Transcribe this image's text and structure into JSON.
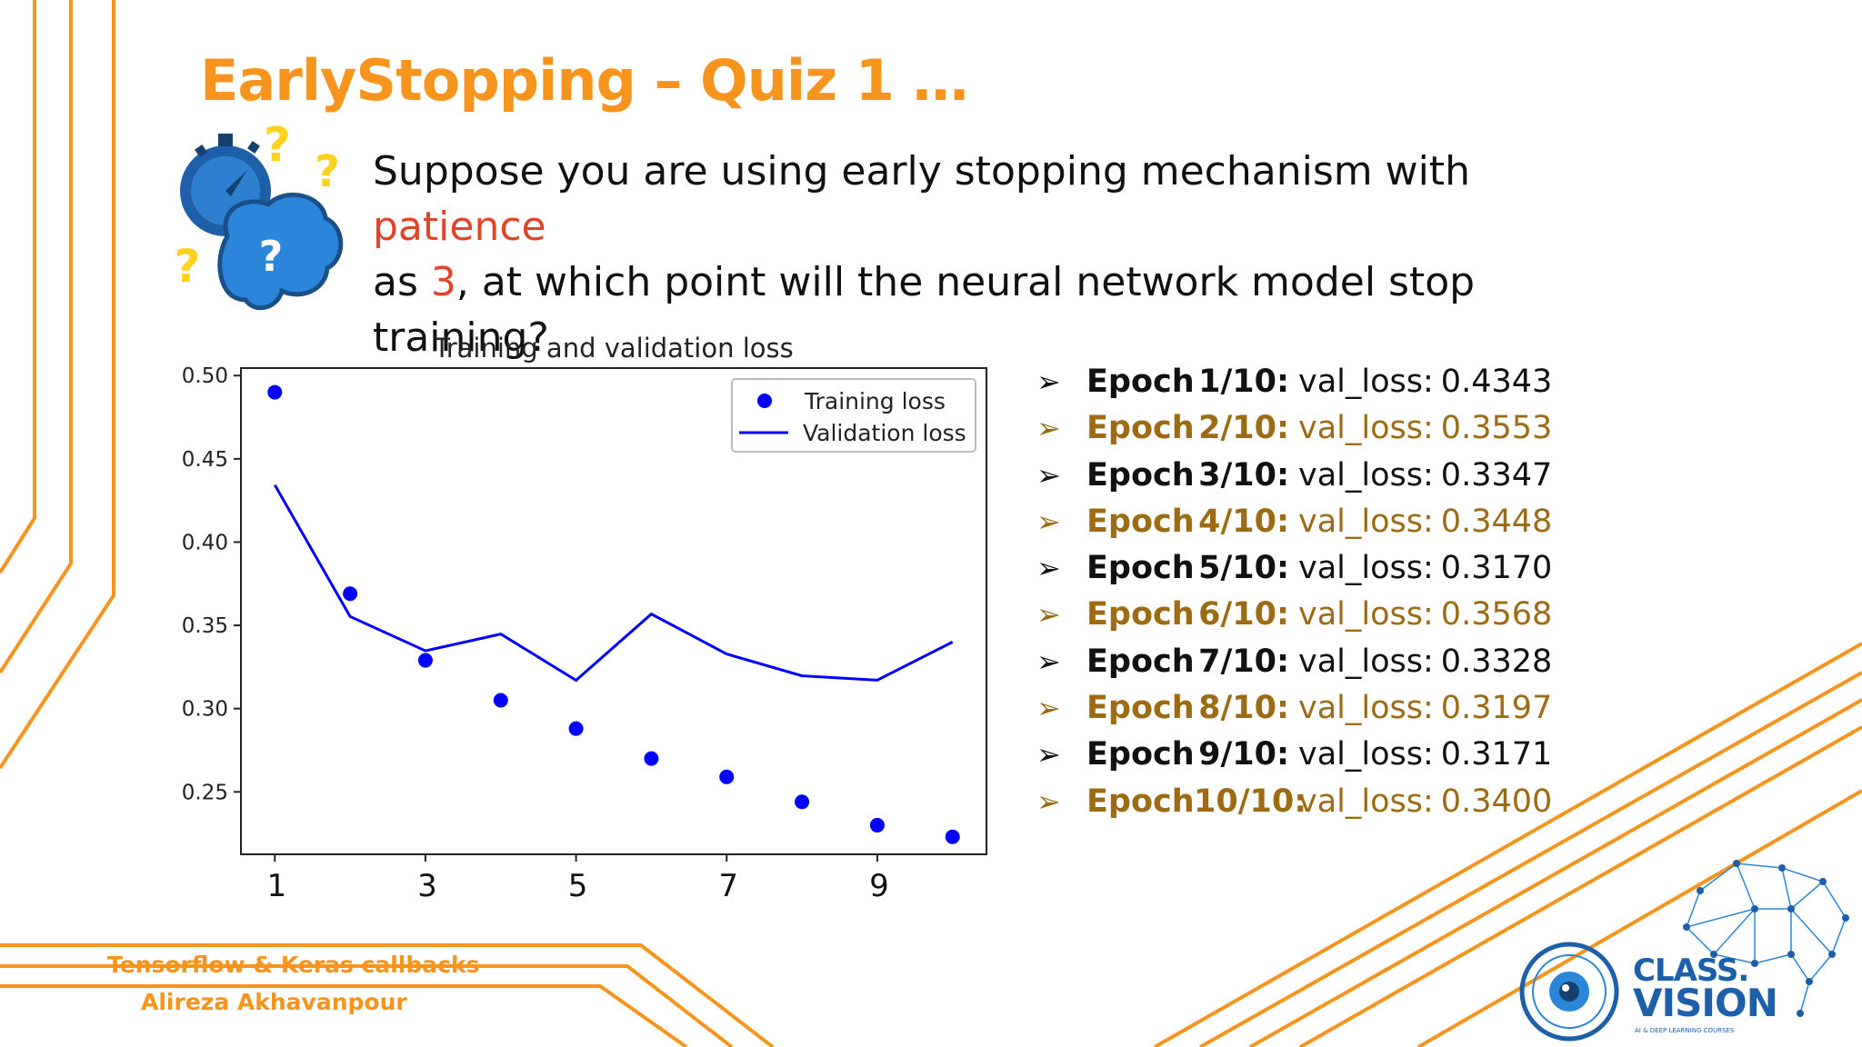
{
  "slide": {
    "title": "EarlyStopping – Quiz 1 …",
    "question": {
      "part1": "Suppose you are using early stopping mechanism with ",
      "highlight1": "patience",
      "part2": "as ",
      "highlight2": "3",
      "part3": ", at which point will the neural network model stop training?"
    },
    "colors": {
      "accent": "#f7941d",
      "highlight": "#e0442b",
      "series": "#0000ff",
      "alt_row": "#9c6b14"
    },
    "footer": {
      "line1": "Tensorflow & Keras callbacks",
      "line2": "Alireza Akhavanpour"
    },
    "logo": {
      "line1": "CLASS.",
      "line2": "VISION",
      "tagline": "AI & DEEP LEARNING COURSES"
    }
  },
  "epochs": [
    {
      "label": "Epoch",
      "num": "1/10:",
      "key": "val_loss:",
      "value": "0.4343"
    },
    {
      "label": "Epoch",
      "num": "2/10:",
      "key": "val_loss:",
      "value": "0.3553"
    },
    {
      "label": "Epoch",
      "num": "3/10:",
      "key": "val_loss:",
      "value": "0.3347"
    },
    {
      "label": "Epoch",
      "num": "4/10:",
      "key": "val_loss:",
      "value": "0.3448"
    },
    {
      "label": "Epoch",
      "num": "5/10:",
      "key": "val_loss:",
      "value": "0.3170"
    },
    {
      "label": "Epoch",
      "num": "6/10:",
      "key": "val_loss:",
      "value": "0.3568"
    },
    {
      "label": "Epoch",
      "num": "7/10:",
      "key": "val_loss:",
      "value": "0.3328"
    },
    {
      "label": "Epoch",
      "num": "8/10:",
      "key": "val_loss:",
      "value": "0.3197"
    },
    {
      "label": "Epoch",
      "num": "9/10:",
      "key": "val_loss:",
      "value": "0.3171"
    },
    {
      "label": "Epoch",
      "num": "10/10:",
      "key": "val_loss:",
      "value": "0.3400"
    }
  ],
  "chart_data": {
    "type": "line",
    "title": "Training and validation loss",
    "xlabel": "",
    "ylabel": "",
    "x": [
      1,
      2,
      3,
      4,
      5,
      6,
      7,
      8,
      9,
      10
    ],
    "xticks": [
      1,
      3,
      5,
      7,
      9
    ],
    "yticks": [
      0.25,
      0.3,
      0.35,
      0.4,
      0.45,
      0.5
    ],
    "xlim": [
      0.55,
      10.45
    ],
    "ylim": [
      0.2125,
      0.5045
    ],
    "legend_position": "top-right",
    "grid": false,
    "series": [
      {
        "name": "Training loss",
        "kind": "scatter",
        "color": "#0000ff",
        "values": [
          0.49,
          0.369,
          0.329,
          0.305,
          0.288,
          0.27,
          0.259,
          0.244,
          0.23,
          0.223
        ]
      },
      {
        "name": "Validation loss",
        "kind": "line",
        "color": "#0000ff",
        "values": [
          0.4343,
          0.3553,
          0.3347,
          0.3448,
          0.317,
          0.3568,
          0.3328,
          0.3197,
          0.3171,
          0.34
        ]
      }
    ]
  }
}
